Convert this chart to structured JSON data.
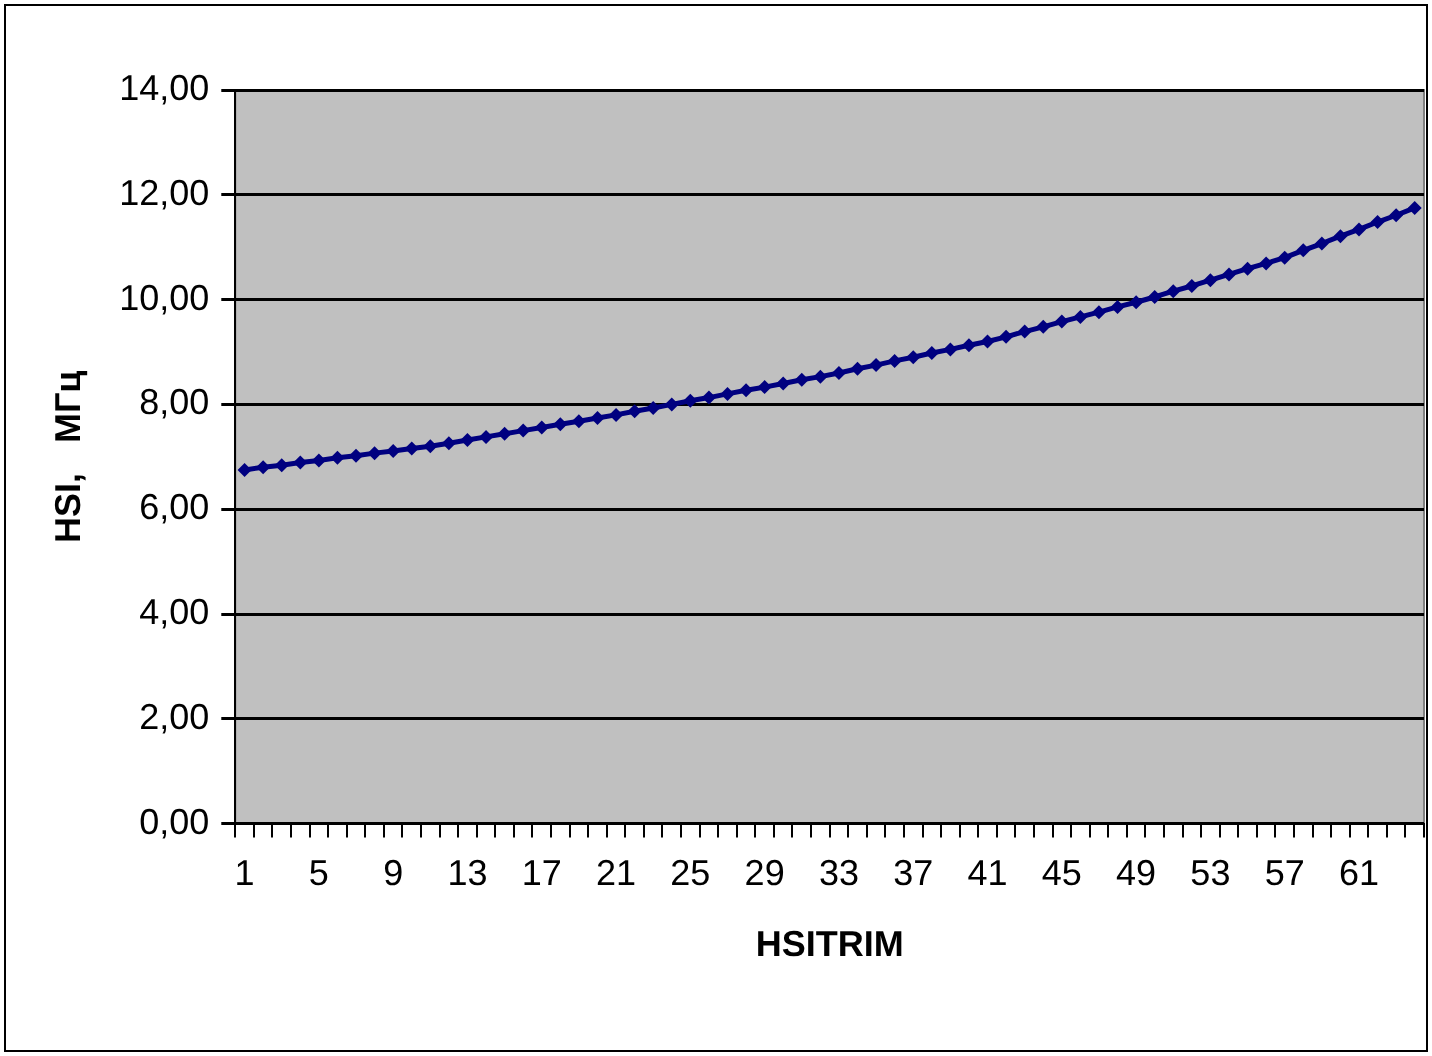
{
  "chart_data": {
    "type": "line",
    "xlabel": "HSITRIM",
    "ylabel": "HSI,   МГц",
    "categories": [
      "1",
      null,
      null,
      null,
      "5",
      null,
      null,
      null,
      "9",
      null,
      null,
      null,
      "13",
      null,
      null,
      null,
      "17",
      null,
      null,
      null,
      "21",
      null,
      null,
      null,
      "25",
      null,
      null,
      null,
      "29",
      null,
      null,
      null,
      "33",
      null,
      null,
      null,
      "37",
      null,
      null,
      null,
      "41",
      null,
      null,
      null,
      "45",
      null,
      null,
      null,
      "49",
      null,
      null,
      null,
      "53",
      null,
      null,
      null,
      "57",
      null,
      null,
      null,
      "61",
      null,
      null,
      null
    ],
    "series": [
      {
        "color": "#000080",
        "values": [
          6.75,
          6.8,
          6.84,
          6.89,
          6.93,
          6.98,
          7.02,
          7.07,
          7.11,
          7.16,
          7.2,
          7.26,
          7.32,
          7.38,
          7.44,
          7.5,
          7.56,
          7.62,
          7.68,
          7.74,
          7.8,
          7.87,
          7.93,
          8.0,
          8.07,
          8.13,
          8.2,
          8.27,
          8.33,
          8.4,
          8.47,
          8.53,
          8.6,
          8.68,
          8.75,
          8.83,
          8.9,
          8.98,
          9.05,
          9.13,
          9.2,
          9.29,
          9.39,
          9.48,
          9.58,
          9.67,
          9.76,
          9.86,
          9.95,
          10.05,
          10.16,
          10.26,
          10.37,
          10.48,
          10.59,
          10.69,
          10.8,
          10.94,
          11.07,
          11.21,
          11.34,
          11.48,
          11.61,
          11.75
        ]
      }
    ],
    "ylim": [
      0,
      14
    ],
    "yticks": [
      {
        "value": 0,
        "label": "0,00"
      },
      {
        "value": 2,
        "label": "2,00"
      },
      {
        "value": 4,
        "label": "4,00"
      },
      {
        "value": 6,
        "label": "6,00"
      },
      {
        "value": 8,
        "label": "8,00"
      },
      {
        "value": 10,
        "label": "10,00"
      },
      {
        "value": 12,
        "label": "12,00"
      },
      {
        "value": 14,
        "label": "14,00"
      }
    ],
    "grid": "y",
    "legend": false,
    "marker": "diamond",
    "line_style": "solid"
  }
}
